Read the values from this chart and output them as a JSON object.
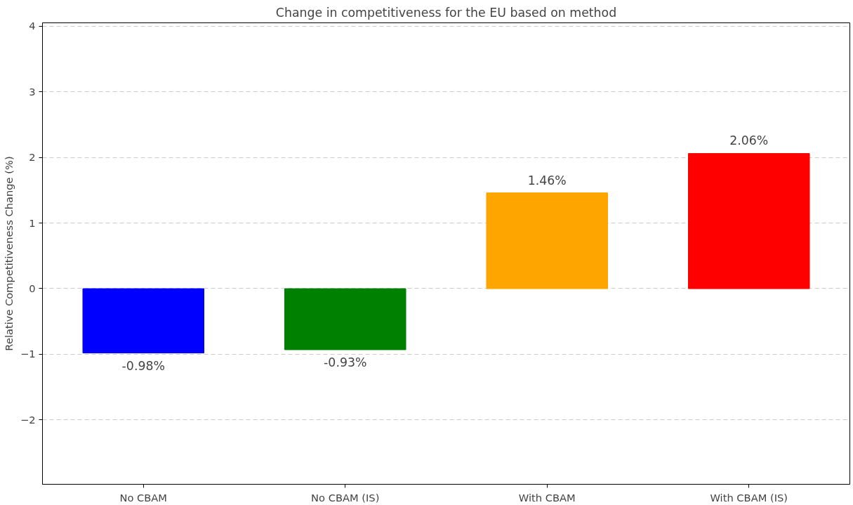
{
  "chart_data": {
    "type": "bar",
    "title": "Change in competitiveness for the EU based on method",
    "ylabel": "Relative Competitiveness Change (%)",
    "categories": [
      "No CBAM",
      "No CBAM (IS)",
      "With CBAM",
      "With CBAM (IS)"
    ],
    "values": [
      -0.98,
      -0.93,
      1.46,
      2.06
    ],
    "colors": [
      "#0000ff",
      "#008000",
      "#ffa500",
      "#ff0000"
    ],
    "value_labels": [
      "-0.98%",
      "-0.93%",
      "1.46%",
      "2.06%"
    ],
    "ylim": [
      -2.98,
      4.05
    ],
    "yticks": [
      {
        "value": -2,
        "label": "−2"
      },
      {
        "value": -1,
        "label": "−1"
      },
      0,
      1,
      2,
      3,
      4
    ],
    "grid": "y",
    "line_style": "dashed"
  }
}
